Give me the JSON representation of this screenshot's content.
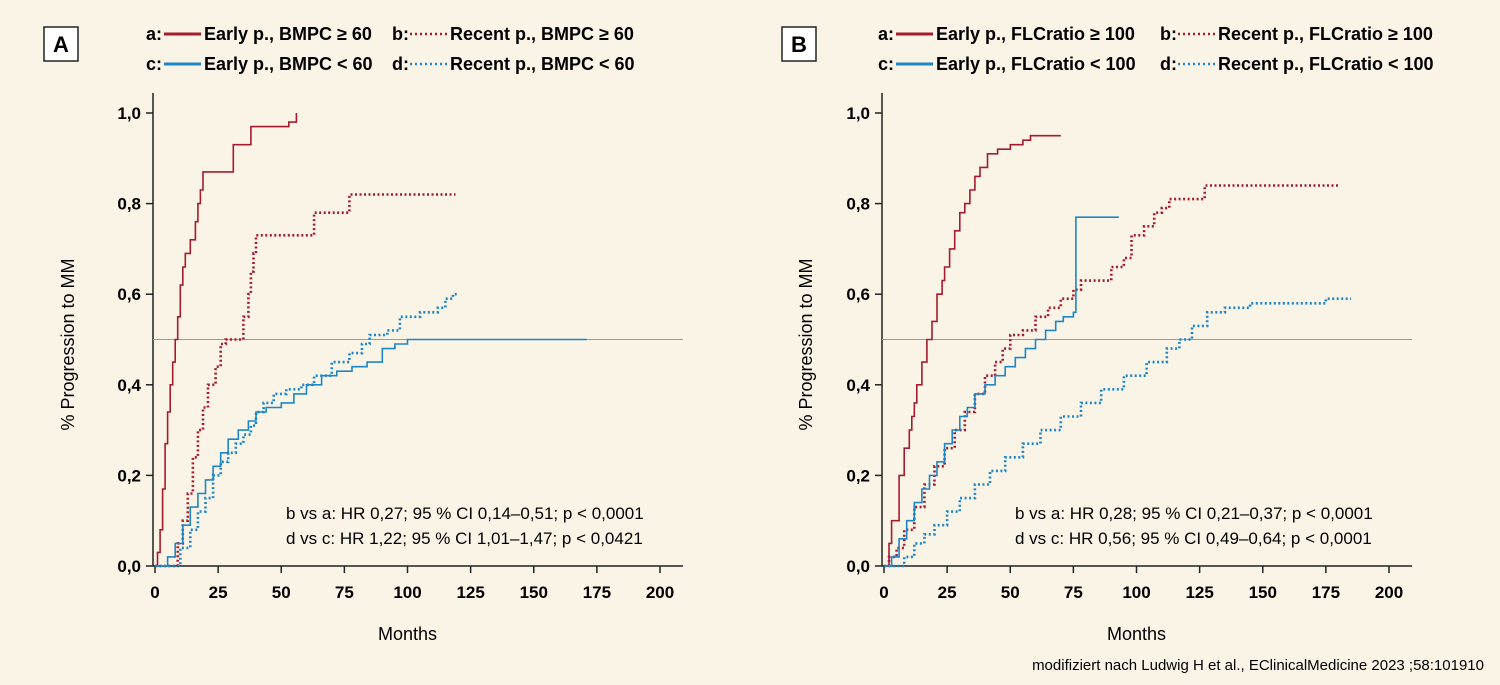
{
  "source_note": "modifiziert nach Ludwig H et al., EClinicalMedicine 2023 ;58:101910",
  "colors": {
    "red": "#a51c30",
    "blue": "#1d86c6",
    "axis": "#222222",
    "ref_line": "#9a9a9a",
    "background": "#faf4e6"
  },
  "chart_data": [
    {
      "type": "line",
      "panel": "A",
      "xlabel": "Months",
      "ylabel": "% Progression to MM",
      "xlim": [
        0,
        200
      ],
      "ylim": [
        0,
        1.0
      ],
      "x_ticks": [
        "0",
        "25",
        "50",
        "75",
        "100",
        "125",
        "150",
        "175",
        "200"
      ],
      "y_ticks": [
        "0,0",
        "0,2",
        "0,4",
        "0,6",
        "0,8",
        "1,0"
      ],
      "reference_line_y": 0.5,
      "legend": [
        {
          "key": "a:",
          "label": "Early p., BMPC ≥ 60",
          "color": "red",
          "style": "solid"
        },
        {
          "key": "b:",
          "label": "Recent p., BMPC ≥ 60",
          "color": "red",
          "style": "dotted"
        },
        {
          "key": "c:",
          "label": "Early p., BMPC < 60",
          "color": "blue",
          "style": "solid"
        },
        {
          "key": "d:",
          "label": "Recent p., BMPC < 60",
          "color": "blue",
          "style": "dotted"
        }
      ],
      "stats": [
        "b vs a: HR 0,27; 95 % CI 0,14–0,51; p < 0,0001",
        "d vs c: HR 1,22; 95 % CI 1,01–1,47; p < 0,0421"
      ],
      "series": [
        {
          "name": "a",
          "color": "red",
          "style": "solid",
          "points": [
            [
              0,
              0
            ],
            [
              1,
              0.03
            ],
            [
              2,
              0.08
            ],
            [
              3,
              0.17
            ],
            [
              4,
              0.27
            ],
            [
              5,
              0.34
            ],
            [
              6,
              0.4
            ],
            [
              7,
              0.45
            ],
            [
              8,
              0.5
            ],
            [
              9,
              0.55
            ],
            [
              10,
              0.62
            ],
            [
              11,
              0.66
            ],
            [
              12,
              0.69
            ],
            [
              14,
              0.72
            ],
            [
              16,
              0.76
            ],
            [
              17,
              0.8
            ],
            [
              18,
              0.83
            ],
            [
              19,
              0.87
            ],
            [
              20,
              0.87
            ],
            [
              30,
              0.87
            ],
            [
              31,
              0.93
            ],
            [
              37,
              0.93
            ],
            [
              38,
              0.97
            ],
            [
              52,
              0.97
            ],
            [
              53,
              0.98
            ],
            [
              56,
              0.98
            ],
            [
              56,
              1.0
            ]
          ]
        },
        {
          "name": "b",
          "color": "red",
          "style": "dotted",
          "points": [
            [
              0,
              0
            ],
            [
              8,
              0
            ],
            [
              9,
              0.05
            ],
            [
              11,
              0.1
            ],
            [
              13,
              0.16
            ],
            [
              15,
              0.24
            ],
            [
              17,
              0.3
            ],
            [
              19,
              0.35
            ],
            [
              21,
              0.4
            ],
            [
              24,
              0.44
            ],
            [
              26,
              0.49
            ],
            [
              28,
              0.5
            ],
            [
              34,
              0.5
            ],
            [
              35,
              0.55
            ],
            [
              37,
              0.6
            ],
            [
              38,
              0.65
            ],
            [
              39,
              0.69
            ],
            [
              40,
              0.73
            ],
            [
              63,
              0.73
            ],
            [
              63,
              0.78
            ],
            [
              77,
              0.78
            ],
            [
              77,
              0.82
            ],
            [
              119,
              0.82
            ]
          ]
        },
        {
          "name": "c",
          "color": "blue",
          "style": "solid",
          "points": [
            [
              0,
              0
            ],
            [
              5,
              0.02
            ],
            [
              8,
              0.05
            ],
            [
              11,
              0.09
            ],
            [
              14,
              0.13
            ],
            [
              17,
              0.16
            ],
            [
              20,
              0.19
            ],
            [
              23,
              0.22
            ],
            [
              26,
              0.25
            ],
            [
              29,
              0.28
            ],
            [
              33,
              0.3
            ],
            [
              37,
              0.32
            ],
            [
              40,
              0.34
            ],
            [
              44,
              0.35
            ],
            [
              50,
              0.36
            ],
            [
              55,
              0.38
            ],
            [
              60,
              0.4
            ],
            [
              66,
              0.42
            ],
            [
              72,
              0.43
            ],
            [
              78,
              0.44
            ],
            [
              84,
              0.45
            ],
            [
              90,
              0.48
            ],
            [
              95,
              0.49
            ],
            [
              100,
              0.5
            ],
            [
              171,
              0.5
            ]
          ]
        },
        {
          "name": "d",
          "color": "blue",
          "style": "dotted",
          "points": [
            [
              0,
              0
            ],
            [
              5,
              0
            ],
            [
              10,
              0.04
            ],
            [
              14,
              0.08
            ],
            [
              17,
              0.12
            ],
            [
              20,
              0.15
            ],
            [
              23,
              0.2
            ],
            [
              26,
              0.23
            ],
            [
              29,
              0.25
            ],
            [
              32,
              0.27
            ],
            [
              35,
              0.29
            ],
            [
              38,
              0.31
            ],
            [
              40,
              0.34
            ],
            [
              43,
              0.36
            ],
            [
              47,
              0.38
            ],
            [
              52,
              0.39
            ],
            [
              58,
              0.4
            ],
            [
              63,
              0.42
            ],
            [
              70,
              0.45
            ],
            [
              77,
              0.47
            ],
            [
              82,
              0.49
            ],
            [
              85,
              0.51
            ],
            [
              92,
              0.52
            ],
            [
              97,
              0.55
            ],
            [
              105,
              0.56
            ],
            [
              112,
              0.57
            ],
            [
              115,
              0.59
            ],
            [
              118,
              0.6
            ],
            [
              120,
              0.6
            ]
          ]
        }
      ]
    },
    {
      "type": "line",
      "panel": "B",
      "xlabel": "Months",
      "ylabel": "% Progression to MM",
      "xlim": [
        0,
        200
      ],
      "ylim": [
        0,
        1.0
      ],
      "x_ticks": [
        "0",
        "25",
        "50",
        "75",
        "100",
        "125",
        "150",
        "175",
        "200"
      ],
      "y_ticks": [
        "0,0",
        "0,2",
        "0,4",
        "0,6",
        "0,8",
        "1,0"
      ],
      "reference_line_y": 0.5,
      "legend": [
        {
          "key": "a:",
          "label": "Early p., FLCratio ≥ 100",
          "color": "red",
          "style": "solid"
        },
        {
          "key": "b:",
          "label": "Recent p., FLCratio ≥ 100",
          "color": "red",
          "style": "dotted"
        },
        {
          "key": "c:",
          "label": "Early p., FLCratio < 100",
          "color": "blue",
          "style": "solid"
        },
        {
          "key": "d:",
          "label": "Recent p., FLCratio < 100",
          "color": "blue",
          "style": "dotted"
        }
      ],
      "stats": [
        "b vs a: HR 0,28; 95 % CI 0,21–0,37; p < 0,0001",
        "d vs c: HR 0,56; 95 % CI 0,49–0,64; p < 0,0001"
      ],
      "series": [
        {
          "name": "a",
          "color": "red",
          "style": "solid",
          "points": [
            [
              0,
              0
            ],
            [
              2,
              0.05
            ],
            [
              3,
              0.1
            ],
            [
              5,
              0.1
            ],
            [
              6,
              0.2
            ],
            [
              8,
              0.26
            ],
            [
              10,
              0.3
            ],
            [
              11,
              0.33
            ],
            [
              12,
              0.36
            ],
            [
              13,
              0.4
            ],
            [
              15,
              0.45
            ],
            [
              17,
              0.5
            ],
            [
              19,
              0.54
            ],
            [
              21,
              0.6
            ],
            [
              23,
              0.63
            ],
            [
              24,
              0.66
            ],
            [
              26,
              0.7
            ],
            [
              28,
              0.74
            ],
            [
              30,
              0.78
            ],
            [
              32,
              0.8
            ],
            [
              34,
              0.83
            ],
            [
              36,
              0.86
            ],
            [
              38,
              0.88
            ],
            [
              41,
              0.91
            ],
            [
              45,
              0.92
            ],
            [
              50,
              0.93
            ],
            [
              55,
              0.94
            ],
            [
              58,
              0.95
            ],
            [
              70,
              0.95
            ]
          ]
        },
        {
          "name": "b",
          "color": "red",
          "style": "dotted",
          "points": [
            [
              0,
              0
            ],
            [
              2,
              0.02
            ],
            [
              5,
              0.04
            ],
            [
              8,
              0.08
            ],
            [
              12,
              0.13
            ],
            [
              16,
              0.18
            ],
            [
              20,
              0.22
            ],
            [
              24,
              0.26
            ],
            [
              28,
              0.3
            ],
            [
              32,
              0.34
            ],
            [
              36,
              0.38
            ],
            [
              40,
              0.42
            ],
            [
              44,
              0.45
            ],
            [
              47,
              0.48
            ],
            [
              50,
              0.51
            ],
            [
              55,
              0.52
            ],
            [
              60,
              0.55
            ],
            [
              65,
              0.57
            ],
            [
              70,
              0.59
            ],
            [
              75,
              0.61
            ],
            [
              78,
              0.63
            ],
            [
              88,
              0.63
            ],
            [
              90,
              0.66
            ],
            [
              95,
              0.68
            ],
            [
              98,
              0.73
            ],
            [
              103,
              0.75
            ],
            [
              107,
              0.78
            ],
            [
              110,
              0.79
            ],
            [
              113,
              0.81
            ],
            [
              126,
              0.81
            ],
            [
              127,
              0.84
            ],
            [
              180,
              0.84
            ]
          ]
        },
        {
          "name": "c",
          "color": "blue",
          "style": "solid",
          "points": [
            [
              0,
              0
            ],
            [
              3,
              0.02
            ],
            [
              6,
              0.06
            ],
            [
              9,
              0.1
            ],
            [
              12,
              0.14
            ],
            [
              15,
              0.17
            ],
            [
              18,
              0.2
            ],
            [
              21,
              0.23
            ],
            [
              24,
              0.27
            ],
            [
              27,
              0.3
            ],
            [
              30,
              0.33
            ],
            [
              33,
              0.35
            ],
            [
              36,
              0.38
            ],
            [
              40,
              0.4
            ],
            [
              44,
              0.42
            ],
            [
              48,
              0.44
            ],
            [
              52,
              0.46
            ],
            [
              56,
              0.48
            ],
            [
              60,
              0.5
            ],
            [
              64,
              0.52
            ],
            [
              68,
              0.54
            ],
            [
              71,
              0.55
            ],
            [
              75,
              0.56
            ],
            [
              76,
              0.77
            ],
            [
              93,
              0.77
            ]
          ]
        },
        {
          "name": "d",
          "color": "blue",
          "style": "dotted",
          "points": [
            [
              0,
              0
            ],
            [
              5,
              0
            ],
            [
              8,
              0.02
            ],
            [
              12,
              0.05
            ],
            [
              16,
              0.07
            ],
            [
              20,
              0.09
            ],
            [
              25,
              0.12
            ],
            [
              30,
              0.15
            ],
            [
              36,
              0.18
            ],
            [
              42,
              0.21
            ],
            [
              48,
              0.24
            ],
            [
              55,
              0.27
            ],
            [
              62,
              0.3
            ],
            [
              70,
              0.33
            ],
            [
              78,
              0.36
            ],
            [
              86,
              0.39
            ],
            [
              95,
              0.42
            ],
            [
              104,
              0.45
            ],
            [
              112,
              0.48
            ],
            [
              117,
              0.5
            ],
            [
              122,
              0.53
            ],
            [
              128,
              0.56
            ],
            [
              135,
              0.57
            ],
            [
              145,
              0.58
            ],
            [
              160,
              0.58
            ],
            [
              175,
              0.59
            ],
            [
              185,
              0.59
            ]
          ]
        }
      ]
    }
  ]
}
